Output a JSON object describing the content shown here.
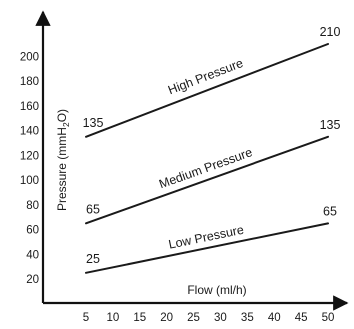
{
  "chart_data": {
    "type": "line",
    "xlabel": "Flow (ml/h)",
    "ylabel": "Pressure (mmH2O)",
    "ylabel_parts": {
      "prefix": "Pressure (mmH",
      "sub": "2",
      "suffix": "O)"
    },
    "xlim": [
      0,
      52
    ],
    "ylim": [
      20,
      210
    ],
    "x_ticks": [
      5,
      10,
      15,
      20,
      25,
      30,
      35,
      40,
      45,
      50
    ],
    "y_ticks": [
      20,
      40,
      60,
      80,
      100,
      120,
      140,
      160,
      180,
      200
    ],
    "grid": false,
    "series": [
      {
        "name": "Low Pressure",
        "x": [
          5,
          50
        ],
        "y": [
          25,
          65
        ],
        "start_label": "25",
        "end_label": "65"
      },
      {
        "name": "Medium Pressure",
        "x": [
          5,
          50
        ],
        "y": [
          65,
          135
        ],
        "start_label": "65",
        "end_label": "135"
      },
      {
        "name": "High Pressure",
        "x": [
          5,
          50
        ],
        "y": [
          135,
          210
        ],
        "start_label": "135",
        "end_label": "210"
      }
    ]
  }
}
